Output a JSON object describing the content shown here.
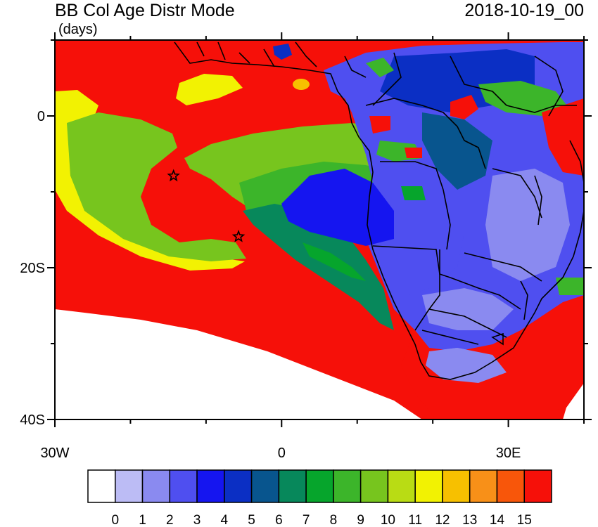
{
  "map": {
    "title": "BB Col Age Distr Mode",
    "units": "(days)",
    "datetime": "2018-10-19_00",
    "lat_labels": [
      {
        "lat": 0,
        "text": "0"
      },
      {
        "lat": -20,
        "text": "20S"
      },
      {
        "lat": -40,
        "text": "40S"
      }
    ],
    "lon_labels": [
      {
        "lon": -30,
        "text": "30W"
      },
      {
        "lon": 0,
        "text": "0"
      },
      {
        "lon": 30,
        "text": "30E"
      }
    ],
    "extent": {
      "lon_min": -30,
      "lon_max": 40,
      "lat_min": -40,
      "lat_max": 10
    },
    "markers": [
      {
        "name": "star-marker-1",
        "lon": -14.3,
        "lat": -7.9
      },
      {
        "name": "star-marker-2",
        "lon": -5.7,
        "lat": -15.9
      }
    ]
  },
  "colorbar": {
    "labels": [
      "0",
      "1",
      "2",
      "3",
      "4",
      "5",
      "6",
      "7",
      "8",
      "9",
      "10",
      "11",
      "12",
      "13",
      "14",
      "15"
    ],
    "colors": [
      "#ffffff",
      "#bcbcf5",
      "#8a8af0",
      "#4f4ff0",
      "#1515f0",
      "#0b2fc4",
      "#08558e",
      "#07885b",
      "#06a52c",
      "#3cb52a",
      "#77c51e",
      "#b9dc14",
      "#f2f202",
      "#f7c000",
      "#f89018",
      "#f8560a",
      "#f61009"
    ]
  },
  "colors": {
    "ocean_red": "#f61009",
    "green_plume": "#77c51e",
    "yellow": "#f2f202",
    "dark_green": "#07885b",
    "blue_land": "#4f4ff0",
    "boundary": "#000000"
  }
}
